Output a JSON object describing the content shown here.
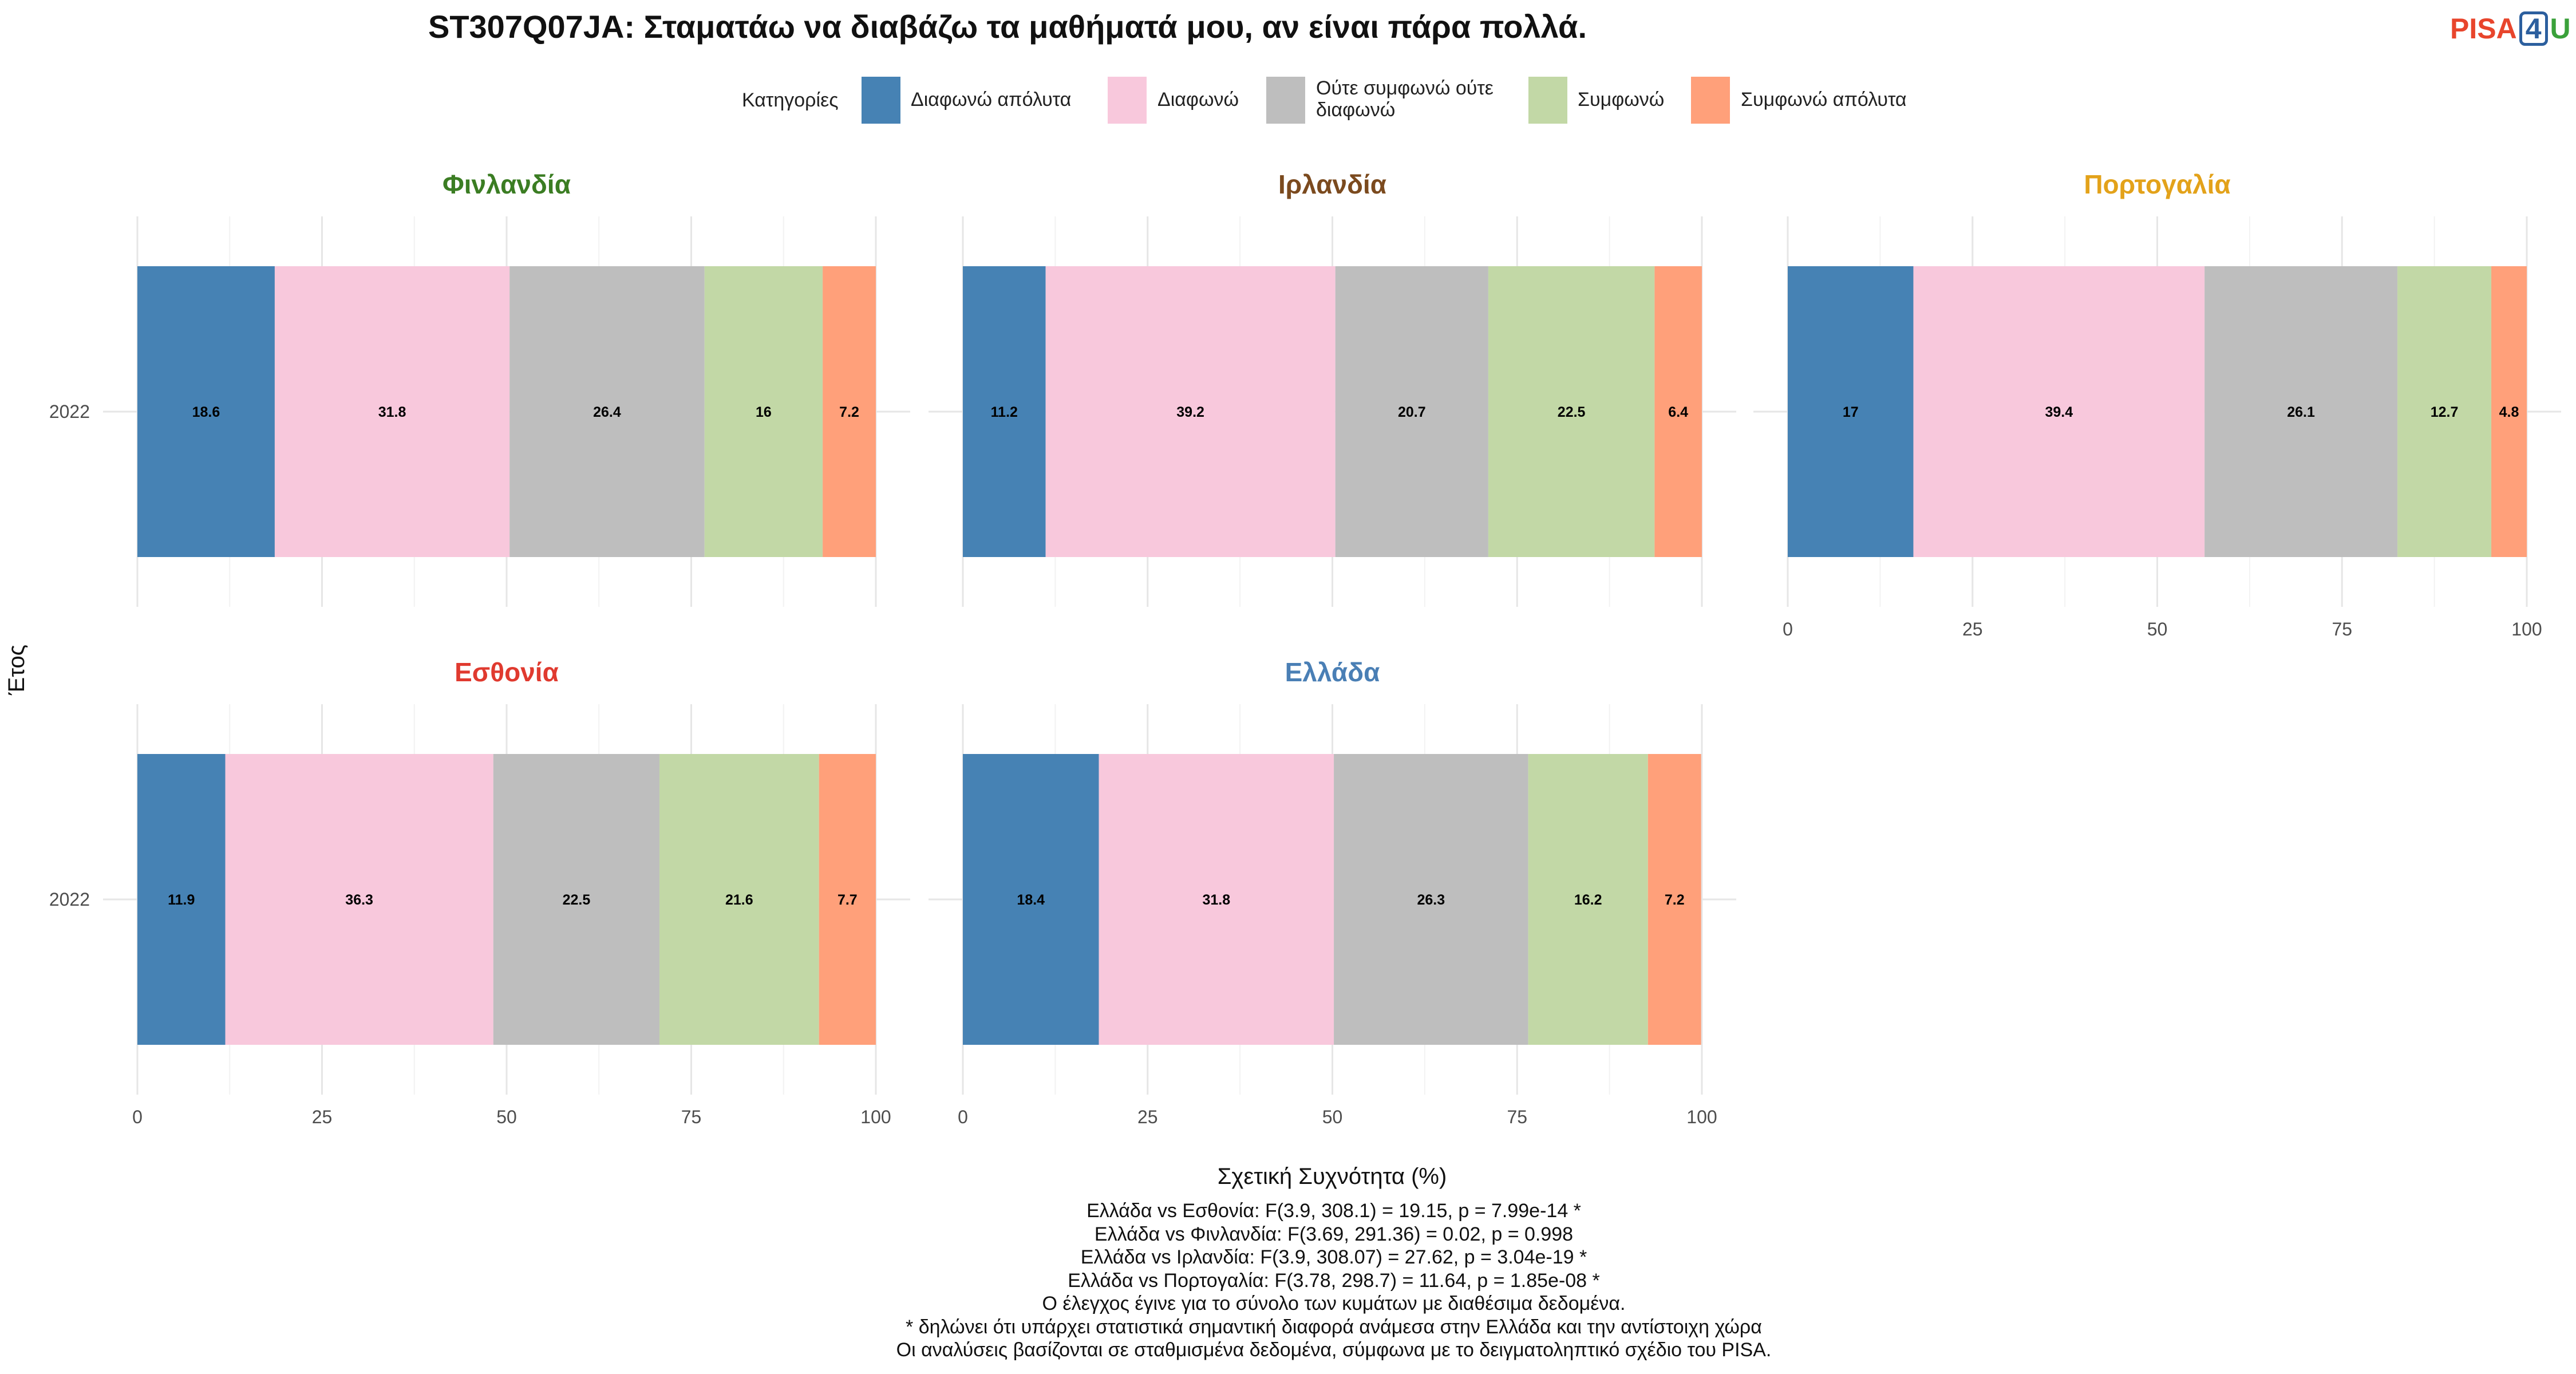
{
  "title": "ST307Q07JA: Σταματάω να διαβάζω τα μαθήματά μου, αν είναι πάρα πολλά.",
  "logo": {
    "part1": "PISA",
    "part2": "4",
    "part3": "U"
  },
  "legend": {
    "title": "Κατηγορίες",
    "items": [
      {
        "label": "Διαφωνώ απόλυτα",
        "color": "#4682B4"
      },
      {
        "label": "Διαφωνώ",
        "color": "#F8C8DC"
      },
      {
        "label_line1": "Ούτε συμφωνώ ούτε",
        "label_line2": "διαφωνώ",
        "color": "#BEBEBE"
      },
      {
        "label": "Συμφωνώ",
        "color": "#C2D8A6"
      },
      {
        "label": "Συμφωνώ απόλυτα",
        "color": "#FFA07A"
      }
    ]
  },
  "chart_data": {
    "type": "bar",
    "orientation": "horizontal",
    "stacked": true,
    "xlabel": "Σχετική Συχνότητα (%)",
    "ylabel": "Έτος",
    "xlim": [
      0,
      100
    ],
    "xticks": [
      0,
      25,
      50,
      75,
      100
    ],
    "categories": [
      "Διαφωνώ απόλυτα",
      "Διαφωνώ",
      "Ούτε συμφωνώ ούτε διαφωνώ",
      "Συμφωνώ",
      "Συμφωνώ απόλυτα"
    ],
    "colors": [
      "#4682B4",
      "#F8C8DC",
      "#BEBEBE",
      "#C2D8A6",
      "#FFA07A"
    ],
    "grid": true,
    "legend_position": "top",
    "panels": [
      {
        "country": "Φινλανδία",
        "title_color": "#3b7d23",
        "year": "2022",
        "values": [
          18.6,
          31.8,
          26.4,
          16,
          7.2
        ]
      },
      {
        "country": "Ιρλανδία",
        "title_color": "#7b4a1e",
        "year": "2022",
        "values": [
          11.2,
          39.2,
          20.7,
          22.5,
          6.4
        ]
      },
      {
        "country": "Πορτογαλία",
        "title_color": "#e3a21a",
        "year": "2022",
        "values": [
          17,
          39.4,
          26.1,
          12.7,
          4.8
        ]
      },
      {
        "country": "Εσθονία",
        "title_color": "#e03a2f",
        "year": "2022",
        "values": [
          11.9,
          36.3,
          22.5,
          21.6,
          7.7
        ]
      },
      {
        "country": "Ελλάδα",
        "title_color": "#4a7fb5",
        "year": "2022",
        "values": [
          18.4,
          31.8,
          26.3,
          16.2,
          7.2
        ]
      }
    ]
  },
  "footnotes": [
    "Ελλάδα vs Εσθονία: F(3.9, 308.1) = 19.15, p = 7.99e-14 *",
    "Ελλάδα vs Φινλανδία: F(3.69, 291.36) = 0.02, p = 0.998",
    "Ελλάδα vs Ιρλανδία: F(3.9, 308.07) = 27.62, p = 3.04e-19 *",
    "Ελλάδα vs Πορτογαλία: F(3.78, 298.7) = 11.64, p = 1.85e-08 *",
    "Ο έλεγχος έγινε για το σύνολο των κυμάτων με διαθέσιμα δεδομένα.",
    "* δηλώνει ότι υπάρχει στατιστικά σημαντική διαφορά ανάμεσα στην Ελλάδα και την αντίστοιχη χώρα",
    "Οι αναλύσεις βασίζονται σε σταθμισμένα δεδομένα, σύμφωνα με το δειγματοληπτικό σχέδιο του PISA."
  ]
}
